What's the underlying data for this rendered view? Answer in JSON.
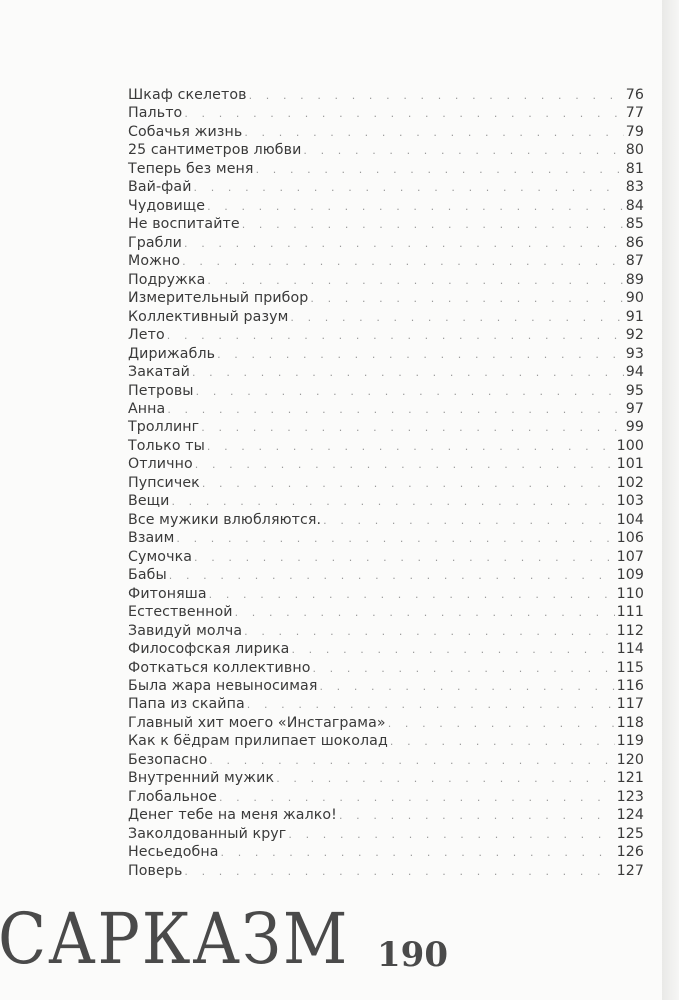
{
  "toc": [
    {
      "title": "Шкаф скелетов",
      "page": "76"
    },
    {
      "title": "Пальто",
      "page": "77"
    },
    {
      "title": "Собачья жизнь",
      "page": "79"
    },
    {
      "title": "25 сантиметров любви",
      "page": "80"
    },
    {
      "title": "Теперь без меня",
      "page": "81"
    },
    {
      "title": "Вай-фай",
      "page": "83"
    },
    {
      "title": "Чудовище",
      "page": "84"
    },
    {
      "title": "Не воспитайте",
      "page": "85"
    },
    {
      "title": "Грабли",
      "page": "86"
    },
    {
      "title": "Можно",
      "page": "87"
    },
    {
      "title": "Подружка",
      "page": "89"
    },
    {
      "title": "Измерительный прибор",
      "page": "90"
    },
    {
      "title": "Коллективный разум",
      "page": "91"
    },
    {
      "title": "Лето",
      "page": "92"
    },
    {
      "title": "Дирижабль",
      "page": "93"
    },
    {
      "title": "Закатай",
      "page": "94"
    },
    {
      "title": "Петровы",
      "page": "95"
    },
    {
      "title": "Анна",
      "page": "97"
    },
    {
      "title": "Троллинг",
      "page": "99"
    },
    {
      "title": "Только ты",
      "page": "100"
    },
    {
      "title": "Отлично",
      "page": "101"
    },
    {
      "title": "Пупсичек",
      "page": "102"
    },
    {
      "title": "Вещи",
      "page": "103"
    },
    {
      "title": "Все мужики влюбляются.",
      "page": "104"
    },
    {
      "title": "Взаим",
      "page": "106"
    },
    {
      "title": "Сумочка",
      "page": "107"
    },
    {
      "title": "Бабы",
      "page": "109"
    },
    {
      "title": "Фитоняша",
      "page": "110"
    },
    {
      "title": "Естественной",
      "page": "111"
    },
    {
      "title": "Завидуй молча",
      "page": "112"
    },
    {
      "title": "Философская лирика",
      "page": "114"
    },
    {
      "title": "Фоткаться коллективно",
      "page": "115"
    },
    {
      "title": "Была жара невыносимая",
      "page": "116"
    },
    {
      "title": "Папа из скайпа",
      "page": "117"
    },
    {
      "title": "Главный хит моего «Инстаграма»",
      "page": "118"
    },
    {
      "title": "Как к бёдрам прилипает шоколад",
      "page": "119"
    },
    {
      "title": "Безопасно",
      "page": "120"
    },
    {
      "title": "Внутренний мужик",
      "page": "121"
    },
    {
      "title": "Глобальное",
      "page": "123"
    },
    {
      "title": "Денег тебе на меня жалко!",
      "page": "124"
    },
    {
      "title": "Заколдованный круг",
      "page": "125"
    },
    {
      "title": "Несьедобна",
      "page": "126"
    },
    {
      "title": "Поверь",
      "page": "127"
    }
  ],
  "footer": {
    "book_title": "САРКАЗМ",
    "page_number": "190"
  }
}
